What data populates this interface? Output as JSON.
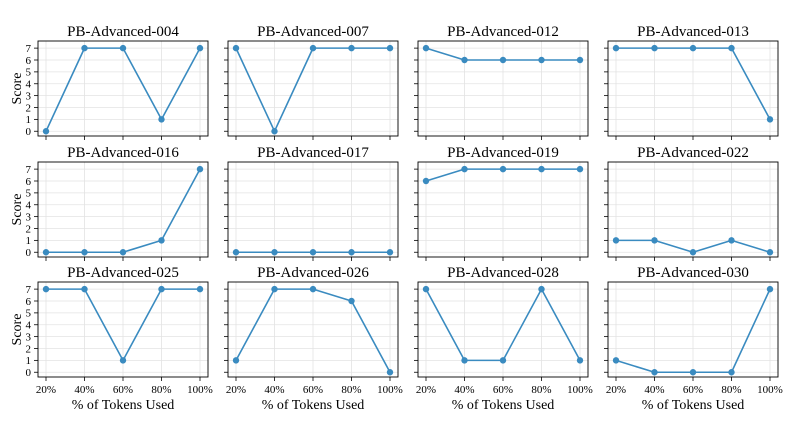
{
  "chart_data": {
    "type": "line",
    "layout": "3x4 grid of subplots sharing axes",
    "x": [
      "20%",
      "40%",
      "60%",
      "80%",
      "100%"
    ],
    "xlabel": "% of Tokens Used",
    "ylabel": "Score",
    "ylim": [
      -0.4,
      7.6
    ],
    "yticks": [
      0,
      1,
      2,
      3,
      4,
      5,
      6,
      7
    ],
    "grid": true,
    "line_color": "#3a8bc0",
    "panels": [
      {
        "title": "PB-Advanced-004",
        "values": [
          0,
          7,
          7,
          1,
          7
        ]
      },
      {
        "title": "PB-Advanced-007",
        "values": [
          7,
          0,
          7,
          7,
          7
        ]
      },
      {
        "title": "PB-Advanced-012",
        "values": [
          7,
          6,
          6,
          6,
          6
        ]
      },
      {
        "title": "PB-Advanced-013",
        "values": [
          7,
          7,
          7,
          7,
          1
        ]
      },
      {
        "title": "PB-Advanced-016",
        "values": [
          0,
          0,
          0,
          1,
          7
        ]
      },
      {
        "title": "PB-Advanced-017",
        "values": [
          0,
          0,
          0,
          0,
          0
        ]
      },
      {
        "title": "PB-Advanced-019",
        "values": [
          6,
          7,
          7,
          7,
          7
        ]
      },
      {
        "title": "PB-Advanced-022",
        "values": [
          1,
          1,
          0,
          1,
          0
        ]
      },
      {
        "title": "PB-Advanced-025",
        "values": [
          7,
          7,
          1,
          7,
          7
        ]
      },
      {
        "title": "PB-Advanced-026",
        "values": [
          1,
          7,
          7,
          6,
          0
        ]
      },
      {
        "title": "PB-Advanced-028",
        "values": [
          7,
          1,
          1,
          7,
          1
        ]
      },
      {
        "title": "PB-Advanced-030",
        "values": [
          1,
          0,
          0,
          0,
          7
        ]
      }
    ]
  }
}
